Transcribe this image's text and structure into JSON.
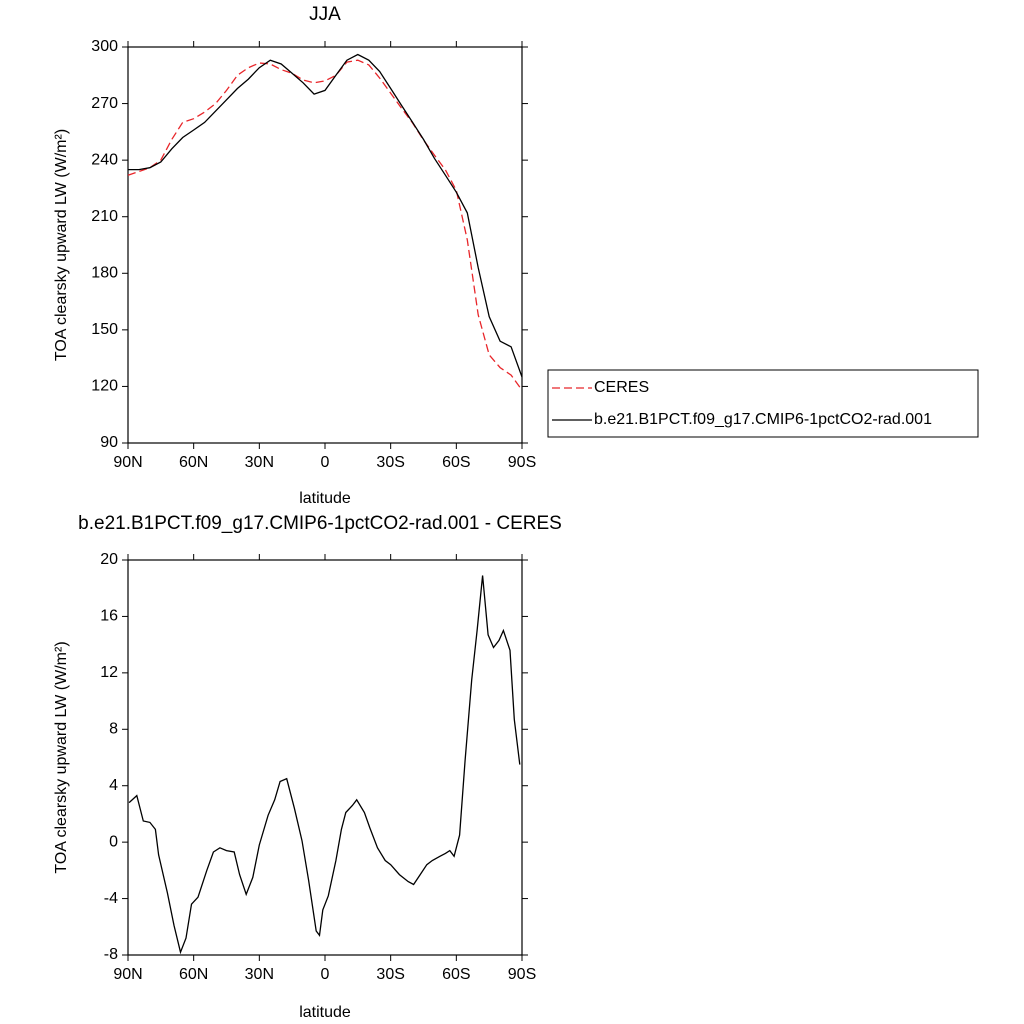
{
  "chart_data": [
    {
      "type": "line",
      "title": "JJA",
      "xlabel": "latitude",
      "ylabel": "TOA clearsky upward LW (W/m²)",
      "x": [
        90,
        85,
        80,
        75,
        70,
        65,
        60,
        55,
        50,
        45,
        40,
        35,
        30,
        25,
        20,
        15,
        10,
        5,
        0,
        -5,
        -10,
        -15,
        -20,
        -25,
        -30,
        -35,
        -40,
        -45,
        -50,
        -55,
        -60,
        -65,
        -70,
        -75,
        -80,
        -85,
        -90
      ],
      "series": [
        {
          "name": "CERES",
          "color": "#e8262a",
          "linestyle": "dashed",
          "values": [
            232,
            234,
            236,
            240,
            251,
            260,
            262,
            265.5,
            270,
            277,
            285,
            289,
            291.5,
            291,
            288,
            286,
            282.5,
            281,
            282,
            285,
            292,
            293,
            290.5,
            283.5,
            275.5,
            267.5,
            259.7,
            250.7,
            242.7,
            234.8,
            224,
            197.7,
            158,
            136.7,
            130,
            126,
            118
          ]
        },
        {
          "name": "b.e21.B1PCT.f09_g17.CMIP6-1pctCO2-rad.001",
          "color": "#000000",
          "linestyle": "solid",
          "values": [
            235,
            235,
            236,
            239,
            246,
            252,
            256,
            260,
            266,
            272,
            278,
            283,
            289,
            293,
            291,
            286,
            281,
            275,
            277,
            285,
            293,
            296,
            293,
            287,
            278,
            269,
            260,
            251,
            241,
            232,
            223,
            212,
            183,
            157,
            144,
            141,
            125
          ]
        }
      ],
      "xlim": [
        90,
        -90
      ],
      "xticks": [
        {
          "value": 90,
          "label": "90N"
        },
        {
          "value": 60,
          "label": "60N"
        },
        {
          "value": 30,
          "label": "30N"
        },
        0,
        {
          "value": -30,
          "label": "30S"
        },
        {
          "value": -60,
          "label": "60S"
        },
        {
          "value": -90,
          "label": "90S"
        }
      ],
      "ylim": [
        90,
        300
      ],
      "yticks": [
        90,
        120,
        150,
        180,
        210,
        240,
        270,
        300
      ],
      "legend": "right"
    },
    {
      "type": "line",
      "title": "b.e21.B1PCT.f09_g17.CMIP6-1pctCO2-rad.001 - CERES",
      "xlabel": "latitude",
      "ylabel": "TOA clearsky upward LW (W/m²)",
      "x": [
        89.5,
        86,
        83,
        80,
        77.5,
        76,
        72,
        69,
        66,
        63.5,
        61,
        58,
        54,
        51,
        48,
        45,
        41.5,
        39,
        36,
        33,
        30,
        26,
        23,
        20.5,
        17.5,
        14,
        10.5,
        7.5,
        4,
        2.5,
        1,
        -1.5,
        -5,
        -7.5,
        -9.5,
        -12.5,
        -14.5,
        -18,
        -20.5,
        -24,
        -27.5,
        -30,
        -34,
        -38,
        -40.5,
        -43.5,
        -46.5,
        -49,
        -52.5,
        -55,
        -57,
        -59,
        -61.5,
        -64,
        -67,
        -69.5,
        -72,
        -74.5,
        -77,
        -79.5,
        -81.5,
        -84.5,
        -86.5,
        -89
      ],
      "series": [
        {
          "color": "#000000",
          "linestyle": "solid",
          "values": [
            2.8,
            3.3,
            1.5,
            1.4,
            0.9,
            -0.9,
            -3.6,
            -5.9,
            -7.8,
            -6.8,
            -4.4,
            -3.9,
            -2.0,
            -0.7,
            -0.4,
            -0.6,
            -0.7,
            -2.3,
            -3.7,
            -2.5,
            -0.2,
            1.9,
            3.0,
            4.3,
            4.5,
            2.4,
            0.1,
            -2.7,
            -6.3,
            -6.6,
            -4.8,
            -3.8,
            -1.3,
            0.9,
            2.1,
            2.6,
            3.0,
            2.1,
            1.0,
            -0.4,
            -1.3,
            -1.6,
            -2.3,
            -2.8,
            -3.0,
            -2.3,
            -1.6,
            -1.3,
            -1.0,
            -0.8,
            -0.6,
            -1.0,
            0.5,
            5.8,
            11.5,
            15.0,
            18.9,
            14.7,
            13.8,
            14.3,
            15.0,
            13.6,
            8.7,
            5.5
          ]
        }
      ],
      "xlim": [
        90,
        -90
      ],
      "xticks": [
        {
          "value": 90,
          "label": "90N"
        },
        {
          "value": 60,
          "label": "60N"
        },
        {
          "value": 30,
          "label": "30N"
        },
        0,
        {
          "value": -30,
          "label": "30S"
        },
        {
          "value": -60,
          "label": "60S"
        },
        {
          "value": -90,
          "label": "90S"
        }
      ],
      "ylim": [
        -8,
        20
      ],
      "yticks": [
        -8,
        -4,
        0,
        4,
        8,
        12,
        16,
        20
      ]
    }
  ]
}
